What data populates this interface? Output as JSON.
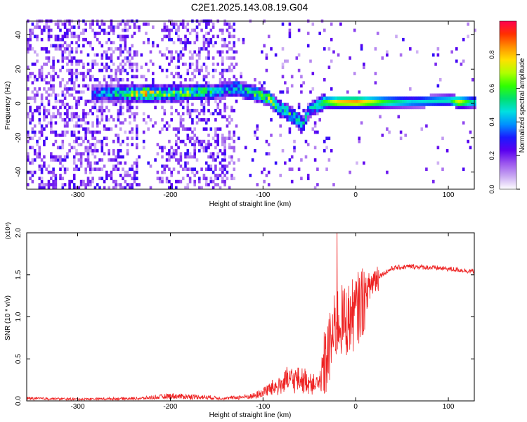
{
  "title": "C2E1.2025.143.08.19.G04",
  "chart_data": [
    {
      "type": "heatmap",
      "xlabel": "Height of straight line (km)",
      "ylabel": "Frequency (Hz)",
      "xlim": [
        -355,
        128
      ],
      "ylim": [
        -50,
        48
      ],
      "xticks": [
        -300,
        -200,
        -100,
        0,
        100
      ],
      "yticks": [
        -40,
        -20,
        0,
        20,
        40
      ],
      "colorbar": {
        "label": "Normalized spectral amplitude",
        "range": [
          0,
          1
        ],
        "ticks": [
          0.0,
          0.2,
          0.4,
          0.6,
          0.8
        ],
        "colors": [
          "#ffffff",
          "#c9a8f2",
          "#9b56ee",
          "#5a00f0",
          "#1a1aff",
          "#0090ff",
          "#00e0e0",
          "#00e070",
          "#30ff00",
          "#b0ff00",
          "#ffe000",
          "#ff9000",
          "#ff3000",
          "#ff0050"
        ]
      },
      "ridge": [
        {
          "x": -280,
          "f": 5,
          "amp": 0.35
        },
        {
          "x": -250,
          "f": 5,
          "amp": 0.55
        },
        {
          "x": -230,
          "f": 5,
          "amp": 0.75
        },
        {
          "x": -210,
          "f": 5,
          "amp": 0.6
        },
        {
          "x": -190,
          "f": 5,
          "amp": 0.6
        },
        {
          "x": -170,
          "f": 6,
          "amp": 0.55
        },
        {
          "x": -150,
          "f": 6,
          "amp": 0.45
        },
        {
          "x": -130,
          "f": 8,
          "amp": 0.5
        },
        {
          "x": -110,
          "f": 5,
          "amp": 0.55
        },
        {
          "x": -95,
          "f": 2,
          "amp": 0.6
        },
        {
          "x": -85,
          "f": -3,
          "amp": 0.55
        },
        {
          "x": -75,
          "f": -6,
          "amp": 0.6
        },
        {
          "x": -65,
          "f": -10,
          "amp": 0.5
        },
        {
          "x": -58,
          "f": -13,
          "amp": 0.45
        },
        {
          "x": -52,
          "f": -5,
          "amp": 0.4
        },
        {
          "x": -45,
          "f": -3,
          "amp": 0.45
        },
        {
          "x": -35,
          "f": 0,
          "amp": 0.6
        },
        {
          "x": -20,
          "f": 0,
          "amp": 0.8
        },
        {
          "x": 0,
          "f": 0,
          "amp": 0.85
        },
        {
          "x": 30,
          "f": 0,
          "amp": 0.6
        },
        {
          "x": 60,
          "f": 0,
          "amp": 0.45
        },
        {
          "x": 100,
          "f": 1,
          "amp": 0.5
        },
        {
          "x": 110,
          "f": 0,
          "amp": 0.75
        },
        {
          "x": 125,
          "f": 0,
          "amp": 0.5
        }
      ]
    },
    {
      "type": "line",
      "xlabel": "Height of straight line (km)",
      "ylabel": "SNR (10 * v/v)",
      "yscale_note": "(x10⁴)",
      "xlim": [
        -355,
        128
      ],
      "ylim": [
        0,
        2.0
      ],
      "xticks": [
        -300,
        -200,
        -100,
        0,
        100
      ],
      "yticks": [
        0.0,
        0.5,
        1.0,
        1.5,
        2.0
      ],
      "color": "#ee2222",
      "envelope": [
        {
          "x": -355,
          "y": 0.03
        },
        {
          "x": -300,
          "y": 0.02
        },
        {
          "x": -230,
          "y": 0.03
        },
        {
          "x": -200,
          "y": 0.06
        },
        {
          "x": -170,
          "y": 0.05
        },
        {
          "x": -140,
          "y": 0.03
        },
        {
          "x": -110,
          "y": 0.06
        },
        {
          "x": -90,
          "y": 0.15
        },
        {
          "x": -70,
          "y": 0.25
        },
        {
          "x": -50,
          "y": 0.22
        },
        {
          "x": -40,
          "y": 0.18
        },
        {
          "x": -30,
          "y": 0.55
        },
        {
          "x": -20,
          "y": 0.95
        },
        {
          "x": -10,
          "y": 0.95
        },
        {
          "x": 0,
          "y": 1.05
        },
        {
          "x": 10,
          "y": 1.25
        },
        {
          "x": 20,
          "y": 1.45
        },
        {
          "x": 40,
          "y": 1.58
        },
        {
          "x": 60,
          "y": 1.6
        },
        {
          "x": 90,
          "y": 1.58
        },
        {
          "x": 110,
          "y": 1.56
        },
        {
          "x": 128,
          "y": 1.54
        }
      ],
      "peak": {
        "x": -20,
        "y": 2.0
      }
    }
  ]
}
